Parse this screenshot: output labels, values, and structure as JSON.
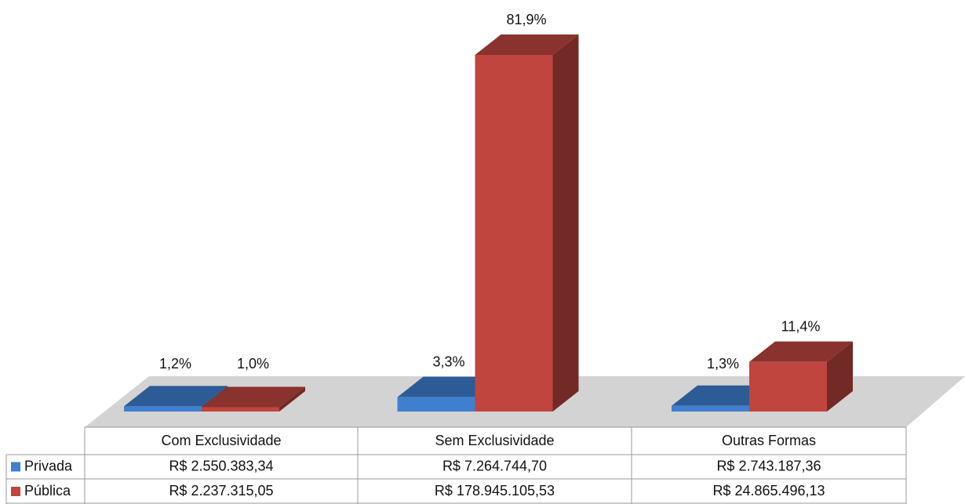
{
  "chart_data": {
    "type": "bar3d",
    "categories": [
      "Com Exclusividade",
      "Sem Exclusividade",
      "Outras Formas"
    ],
    "series": [
      {
        "name": "Privada",
        "color": "#3f7fcf",
        "values": [
          1.2,
          3.3,
          1.3
        ],
        "value_labels": [
          "1,2%",
          "3,3%",
          "1,3%"
        ],
        "table_values": [
          "R$ 2.550.383,34",
          "R$ 7.264.744,70",
          "R$ 2.743.187,36"
        ]
      },
      {
        "name": "Pública",
        "color": "#c0453e",
        "values": [
          1.0,
          81.9,
          11.4
        ],
        "value_labels": [
          "1,0%",
          "81,9%",
          "11,4%"
        ],
        "table_values": [
          "R$ 2.237.315,05",
          "R$ 178.945.105,53",
          "R$ 24.865.496,13"
        ]
      }
    ]
  }
}
